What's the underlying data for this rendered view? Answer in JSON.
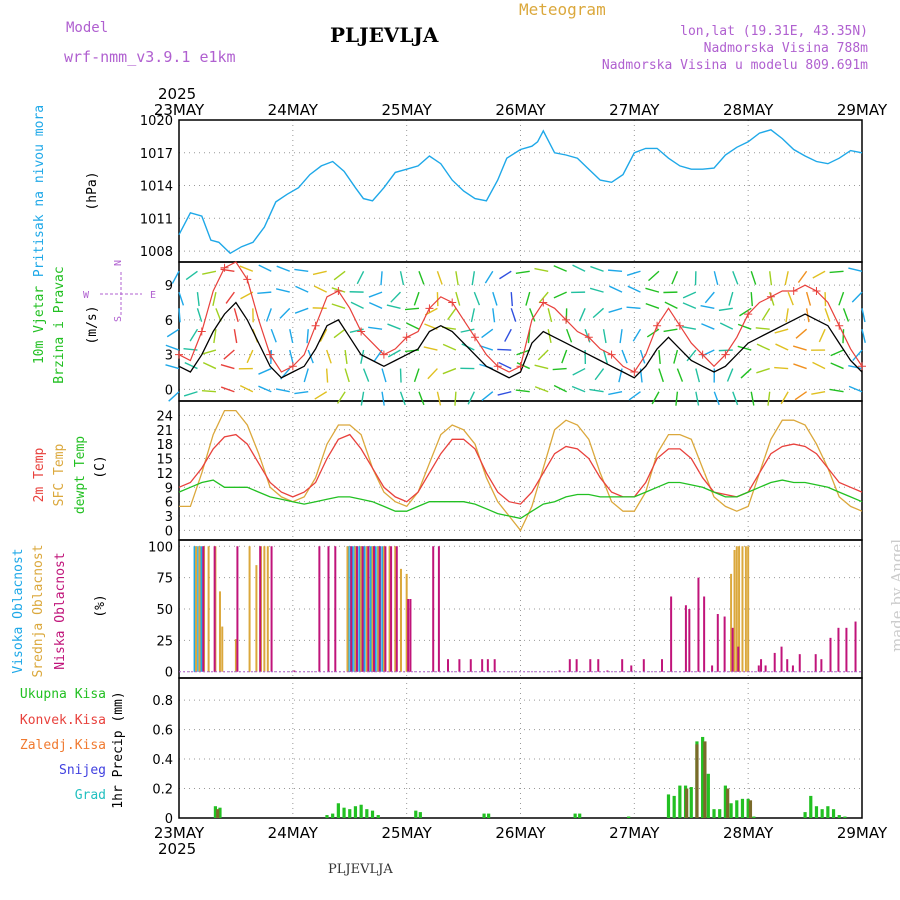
{
  "header": {
    "model_label": "Model",
    "model_name": "wrf-nmm_v3.9.1 e1km",
    "station": "PLJEVLJA",
    "title": "Meteogram",
    "coords": "lon,lat (19.31E, 43.35N)",
    "elevation": "Nadmorska Visina 788m",
    "model_elevation": "Nadmorska Visina u modelu 809.691m",
    "watermark": "made by Angel",
    "footer_station": "PLJEVLJA"
  },
  "axis": {
    "year": "2025",
    "dates": [
      "23MAY",
      "24MAY",
      "25MAY",
      "26MAY",
      "27MAY",
      "28MAY",
      "29MAY"
    ]
  },
  "colors": {
    "pressure": "#1ea8e8",
    "temp2m": "#e8413c",
    "sfc": "#dba83c",
    "dew": "#22c022",
    "wind_mean": "#000000",
    "gust": "#e8413c",
    "high": "#1ea8e8",
    "mid": "#dba83c",
    "low": "#c0147a",
    "total": "#22c022",
    "conv": "#e8413c",
    "frz": "#f07a30",
    "snow": "#4040e0",
    "grad": "#22c0c0",
    "precip_combo": "#7a6a2a"
  },
  "chart_data": [
    {
      "type": "line",
      "id": "pressure",
      "ylabel": [
        "Pritisak na nivou mora",
        "(hPa)"
      ],
      "ylim": [
        1007,
        1020
      ],
      "yticks": [
        1008,
        1011,
        1014,
        1017,
        1020
      ],
      "x_days": [
        0,
        0.1,
        0.2,
        0.28,
        0.35,
        0.45,
        0.55,
        0.65,
        0.75,
        0.85,
        0.95,
        1.05,
        1.15,
        1.25,
        1.35,
        1.45,
        1.55,
        1.62,
        1.7,
        1.8,
        1.9,
        2.0,
        2.1,
        2.2,
        2.3,
        2.4,
        2.5,
        2.6,
        2.7,
        2.8,
        2.88,
        3.0,
        3.1,
        3.15,
        3.2,
        3.3,
        3.4,
        3.5,
        3.6,
        3.7,
        3.8,
        3.9,
        4.0,
        4.1,
        4.2,
        4.3,
        4.4,
        4.5,
        4.6,
        4.7,
        4.8,
        4.9,
        5.0,
        5.1,
        5.2,
        5.3,
        5.4,
        5.5,
        5.6,
        5.7,
        5.8,
        5.9,
        6.0
      ],
      "values": [
        1009.5,
        1011.5,
        1011.2,
        1009.0,
        1008.8,
        1007.8,
        1008.4,
        1008.8,
        1010.2,
        1012.5,
        1013.2,
        1013.8,
        1015.0,
        1015.8,
        1016.2,
        1015.3,
        1013.8,
        1012.8,
        1012.6,
        1013.8,
        1015.2,
        1015.5,
        1015.8,
        1016.7,
        1016.0,
        1014.5,
        1013.5,
        1012.8,
        1012.6,
        1014.5,
        1016.5,
        1017.3,
        1017.6,
        1018.0,
        1019.0,
        1017.0,
        1016.8,
        1016.5,
        1015.5,
        1014.5,
        1014.3,
        1015.0,
        1017.0,
        1017.4,
        1017.4,
        1016.5,
        1015.8,
        1015.5,
        1015.5,
        1015.6,
        1016.8,
        1017.5,
        1018.0,
        1018.8,
        1019.1,
        1018.3,
        1017.3,
        1016.7,
        1016.2,
        1016.0,
        1016.5,
        1017.2,
        1017.0
      ],
      "series": [
        {
          "name": "Pritisak na nivou mora"
        }
      ]
    },
    {
      "type": "line",
      "id": "wind",
      "ylabel": [
        "10m Vjetar",
        "Brzina i Pravac",
        "(m/s)"
      ],
      "compass": {
        "n": "N",
        "s": "S",
        "w": "W",
        "e": "E"
      },
      "ylim": [
        -1,
        11
      ],
      "yticks": [
        0,
        3,
        6,
        9
      ],
      "x_days": [
        0,
        0.1,
        0.2,
        0.3,
        0.4,
        0.5,
        0.6,
        0.7,
        0.8,
        0.9,
        1.0,
        1.1,
        1.2,
        1.3,
        1.4,
        1.5,
        1.6,
        1.7,
        1.8,
        1.9,
        2.0,
        2.1,
        2.2,
        2.3,
        2.4,
        2.5,
        2.6,
        2.7,
        2.8,
        2.9,
        3.0,
        3.1,
        3.2,
        3.3,
        3.4,
        3.5,
        3.6,
        3.7,
        3.8,
        3.9,
        4.0,
        4.1,
        4.2,
        4.3,
        4.4,
        4.5,
        4.6,
        4.7,
        4.8,
        4.9,
        5.0,
        5.1,
        5.2,
        5.3,
        5.4,
        5.5,
        5.6,
        5.7,
        5.8,
        5.9,
        6.0
      ],
      "values": [
        2.0,
        1.5,
        3.0,
        5.0,
        6.5,
        7.5,
        6.0,
        4.0,
        2.0,
        1.0,
        1.5,
        2.0,
        3.5,
        5.5,
        6.0,
        4.5,
        3.0,
        2.5,
        2.0,
        2.5,
        3.0,
        3.5,
        5.0,
        5.5,
        5.0,
        4.0,
        3.0,
        2.0,
        1.5,
        1.0,
        1.5,
        4.0,
        5.0,
        4.5,
        4.0,
        3.5,
        3.0,
        2.5,
        2.0,
        1.5,
        1.0,
        2.0,
        3.5,
        4.5,
        3.5,
        2.5,
        2.0,
        1.5,
        2.0,
        3.0,
        4.0,
        4.5,
        5.0,
        5.5,
        6.0,
        6.5,
        6.0,
        5.5,
        4.0,
        2.5,
        1.5
      ],
      "gust_values": [
        3.0,
        2.5,
        5.0,
        8.5,
        10.5,
        11.0,
        9.5,
        6.0,
        3.0,
        1.5,
        2.0,
        3.0,
        5.5,
        8.0,
        8.5,
        7.0,
        5.0,
        4.0,
        3.0,
        3.5,
        4.5,
        5.0,
        7.0,
        8.0,
        7.5,
        6.0,
        4.5,
        3.0,
        2.0,
        1.5,
        2.0,
        6.0,
        7.5,
        7.0,
        6.0,
        5.0,
        4.5,
        3.5,
        3.0,
        2.0,
        1.5,
        3.0,
        5.5,
        7.0,
        5.5,
        4.0,
        3.0,
        2.0,
        3.0,
        4.5,
        6.5,
        7.5,
        8.0,
        8.5,
        8.5,
        9.0,
        8.5,
        7.5,
        5.5,
        3.5,
        2.0
      ],
      "series": [
        {
          "name": "10m Vjetar"
        }
      ]
    },
    {
      "type": "line",
      "id": "temperature",
      "ylabel": [
        "2m Temp",
        "SFC Temp",
        "dewpt Temp",
        "(C)"
      ],
      "ylim": [
        -2,
        27
      ],
      "yticks": [
        0,
        3,
        6,
        9,
        12,
        15,
        18,
        21,
        24
      ],
      "x_days": [
        0,
        0.1,
        0.2,
        0.3,
        0.4,
        0.5,
        0.6,
        0.7,
        0.8,
        0.9,
        1.0,
        1.1,
        1.2,
        1.3,
        1.4,
        1.5,
        1.6,
        1.7,
        1.8,
        1.9,
        2.0,
        2.1,
        2.2,
        2.3,
        2.4,
        2.5,
        2.6,
        2.7,
        2.8,
        2.9,
        3.0,
        3.1,
        3.2,
        3.3,
        3.4,
        3.5,
        3.6,
        3.7,
        3.8,
        3.9,
        4.0,
        4.1,
        4.2,
        4.3,
        4.4,
        4.5,
        4.6,
        4.7,
        4.8,
        4.9,
        5.0,
        5.1,
        5.2,
        5.3,
        5.4,
        5.5,
        5.6,
        5.7,
        5.8,
        5.9,
        6.0
      ],
      "series": [
        {
          "name": "2m Temp",
          "values": [
            9,
            10,
            13,
            17,
            19.5,
            20,
            18,
            14,
            10,
            8,
            7,
            8,
            10,
            15,
            19,
            20,
            17,
            13,
            9,
            7,
            6,
            8,
            12,
            16,
            19,
            19,
            17,
            12,
            8,
            6,
            5.5,
            8,
            12,
            16,
            17.5,
            17,
            15,
            11,
            8,
            7,
            7,
            10,
            15,
            17,
            17,
            15,
            11,
            8,
            7.5,
            7,
            8,
            12,
            16,
            17.5,
            18,
            17.5,
            16,
            13,
            10,
            9,
            8
          ]
        },
        {
          "name": "SFC Temp",
          "values": [
            5,
            5,
            12,
            20,
            25,
            25,
            22,
            16,
            9,
            7,
            6,
            7,
            11,
            18,
            22,
            22,
            20,
            13,
            8,
            6,
            5,
            8,
            14,
            20,
            22,
            21,
            18,
            11,
            6,
            3,
            0,
            5,
            13,
            21,
            23,
            22,
            19,
            12,
            6,
            4,
            4,
            8,
            16,
            20,
            20,
            19,
            13,
            7,
            5,
            4,
            5,
            12,
            19,
            23,
            23,
            22,
            18,
            13,
            7,
            5,
            4
          ]
        },
        {
          "name": "dewpt Temp",
          "values": [
            8,
            9,
            10,
            10.5,
            9,
            9,
            9,
            8,
            7,
            6.5,
            6,
            5.5,
            6,
            6.5,
            7,
            7,
            6.5,
            6,
            5,
            4,
            4,
            5,
            6,
            6,
            6,
            6,
            5.5,
            4.5,
            3.5,
            3,
            2.5,
            4,
            5.5,
            6,
            7,
            7.5,
            7.5,
            7,
            7,
            7,
            7,
            8,
            9,
            10,
            10,
            9.5,
            9,
            8,
            7,
            7,
            8,
            9,
            10,
            10.5,
            10,
            10,
            9.5,
            9,
            8,
            7,
            6
          ]
        }
      ]
    },
    {
      "type": "bar",
      "id": "clouds",
      "ylabel": [
        "Visoka Oblacnost",
        "Srednja Oblacnost",
        "Niska Oblacnost",
        "(%)"
      ],
      "ylim": [
        -5,
        105
      ],
      "yticks": [
        0,
        25,
        50,
        75,
        100
      ],
      "series": [
        {
          "name": "Visoka Oblacnost",
          "x_days": [
            0.15,
            0.17,
            0.19,
            0.21,
            0.23,
            1.5,
            1.52,
            1.54,
            1.56,
            1.58,
            1.6,
            1.62,
            1.64,
            1.66,
            1.68,
            1.7,
            1.72,
            1.74,
            1.76,
            1.78,
            1.8
          ],
          "values": [
            100,
            100,
            100,
            100,
            100,
            100,
            100,
            100,
            100,
            100,
            100,
            100,
            100,
            100,
            100,
            100,
            100,
            100,
            100,
            100,
            100
          ]
        },
        {
          "name": "Srednja Oblacnost",
          "x_days": [
            0.15,
            0.18,
            0.22,
            0.26,
            0.32,
            0.36,
            0.38,
            0.5,
            0.62,
            0.68,
            0.72,
            0.75,
            0.78,
            1.48,
            1.55,
            1.6,
            1.65,
            1.7,
            1.75,
            1.8,
            1.85,
            1.9,
            1.95,
            2.0,
            4.85,
            4.88,
            4.9,
            4.92,
            4.95,
            4.98,
            5.0
          ],
          "values": [
            100,
            100,
            100,
            100,
            100,
            64,
            36,
            26,
            100,
            85,
            100,
            100,
            100,
            100,
            100,
            100,
            100,
            100,
            100,
            100,
            100,
            100,
            82,
            78,
            78,
            97,
            100,
            100,
            100,
            100,
            100
          ]
        },
        {
          "name": "Niska Oblacnost",
          "x_days": [
            0.2,
            0.3,
            0.5,
            0.7,
            0.8,
            1.0,
            1.22,
            1.3,
            1.36,
            1.5,
            1.55,
            1.6,
            1.65,
            1.7,
            1.75,
            1.8,
            1.85,
            1.9,
            2.0,
            2.02,
            2.22,
            2.27,
            2.35,
            2.45,
            2.55,
            2.65,
            2.7,
            2.76,
            3.33,
            3.42,
            3.48,
            3.6,
            3.67,
            3.75,
            3.88,
            3.96,
            4.07,
            4.23,
            4.31,
            4.44,
            4.47,
            4.55,
            4.6,
            4.67,
            4.72,
            4.78,
            4.85,
            4.9,
            5.08,
            5.1,
            5.14,
            5.22,
            5.28,
            5.33,
            5.38,
            5.44,
            5.58,
            5.63,
            5.71,
            5.78,
            5.85,
            5.93
          ],
          "values": [
            100,
            100,
            100,
            100,
            100,
            1,
            100,
            100,
            100,
            100,
            100,
            100,
            100,
            100,
            100,
            100,
            100,
            100,
            58,
            58,
            100,
            100,
            10,
            10,
            10,
            10,
            10,
            10,
            1,
            10,
            10,
            10,
            10,
            1,
            10,
            5,
            10,
            10,
            60,
            53,
            50,
            75,
            60,
            5,
            46,
            44,
            35,
            20,
            5,
            10,
            5,
            15,
            20,
            10,
            5,
            14,
            14,
            10,
            27,
            35,
            35,
            40
          ]
        }
      ]
    },
    {
      "type": "bar",
      "id": "precip",
      "ylabel": [
        "Ukupna Kisa",
        "Konvek.Kisa",
        "Zaledj.Kisa",
        "Snijeg",
        "Grad",
        "1hr Precip (mm)"
      ],
      "ylim": [
        0,
        0.95
      ],
      "yticks": [
        0,
        0.2,
        0.4,
        0.6,
        0.8
      ],
      "series": [
        {
          "name": "Ukupna Kisa",
          "x_days": [
            0.32,
            0.36,
            1.3,
            1.35,
            1.4,
            1.45,
            1.5,
            1.55,
            1.6,
            1.65,
            1.7,
            1.75,
            2.08,
            2.12,
            2.68,
            2.72,
            3.48,
            3.52,
            3.95,
            4.3,
            4.35,
            4.4,
            4.45,
            4.5,
            4.55,
            4.6,
            4.65,
            4.7,
            4.75,
            4.8,
            4.85,
            4.9,
            4.95,
            5.0,
            5.05,
            5.5,
            5.55,
            5.6,
            5.65,
            5.7,
            5.75,
            5.8,
            5.85
          ],
          "values": [
            0.08,
            0.07,
            0.02,
            0.03,
            0.1,
            0.07,
            0.06,
            0.08,
            0.09,
            0.06,
            0.05,
            0.02,
            0.05,
            0.04,
            0.03,
            0.03,
            0.03,
            0.03,
            0.01,
            0.16,
            0.15,
            0.22,
            0.22,
            0.21,
            0.52,
            0.55,
            0.3,
            0.06,
            0.06,
            0.22,
            0.1,
            0.12,
            0.13,
            0.13,
            0.01,
            0.04,
            0.15,
            0.08,
            0.06,
            0.08,
            0.06,
            0.02,
            0.01
          ]
        },
        {
          "name": "Konvek.Kisa",
          "x_days": [
            0.34,
            4.46,
            4.55,
            4.62,
            4.82,
            5.02
          ],
          "values": [
            0.06,
            0.2,
            0.5,
            0.52,
            0.2,
            0.12
          ]
        },
        {
          "name": "Zaledj.Kisa",
          "x_days": [],
          "values": []
        },
        {
          "name": "Snijeg",
          "x_days": [],
          "values": []
        },
        {
          "name": "Grad",
          "x_days": [],
          "values": []
        }
      ]
    }
  ]
}
